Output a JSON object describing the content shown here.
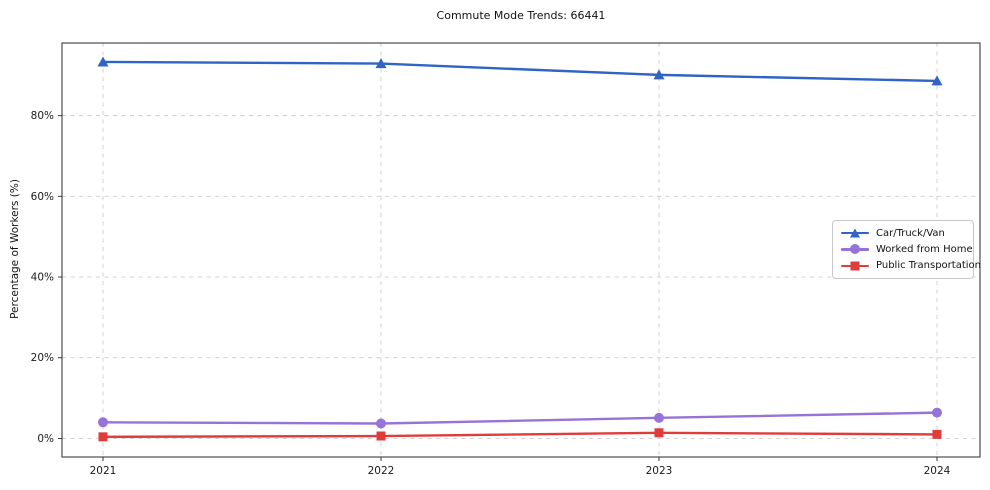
{
  "chart_data": {
    "type": "line",
    "title": "Commute Mode Trends: 66441",
    "xlabel": "",
    "ylabel": "Percentage of Workers (%)",
    "x": [
      2021,
      2022,
      2023,
      2024
    ],
    "xtick_labels": [
      "2021",
      "2022",
      "2023",
      "2024"
    ],
    "series": [
      {
        "name": "Car/Truck/Van",
        "marker": "triangle",
        "color": "#2f63c5",
        "values": [
          93.3,
          92.9,
          90.1,
          88.6
        ]
      },
      {
        "name": "Worked from Home",
        "marker": "circle",
        "color": "#9673d8",
        "values": [
          4.0,
          3.7,
          5.1,
          6.4
        ]
      },
      {
        "name": "Public Transportation",
        "marker": "square",
        "color": "#e03c3c",
        "values": [
          0.4,
          0.6,
          1.4,
          1.0
        ]
      }
    ],
    "yticks": [
      0,
      20,
      40,
      60,
      80
    ],
    "ytick_labels": [
      "0%",
      "20%",
      "40%",
      "60%",
      "80%"
    ],
    "ylim": [
      -4.6,
      98.0
    ],
    "xlim": [
      2020.8525,
      2024.1547
    ],
    "grid": true,
    "legend_position": "center right",
    "colors": {
      "background": "#ffffff",
      "grid": "#cccccc",
      "spine": "#2a2a2a",
      "text": "#111111"
    }
  }
}
